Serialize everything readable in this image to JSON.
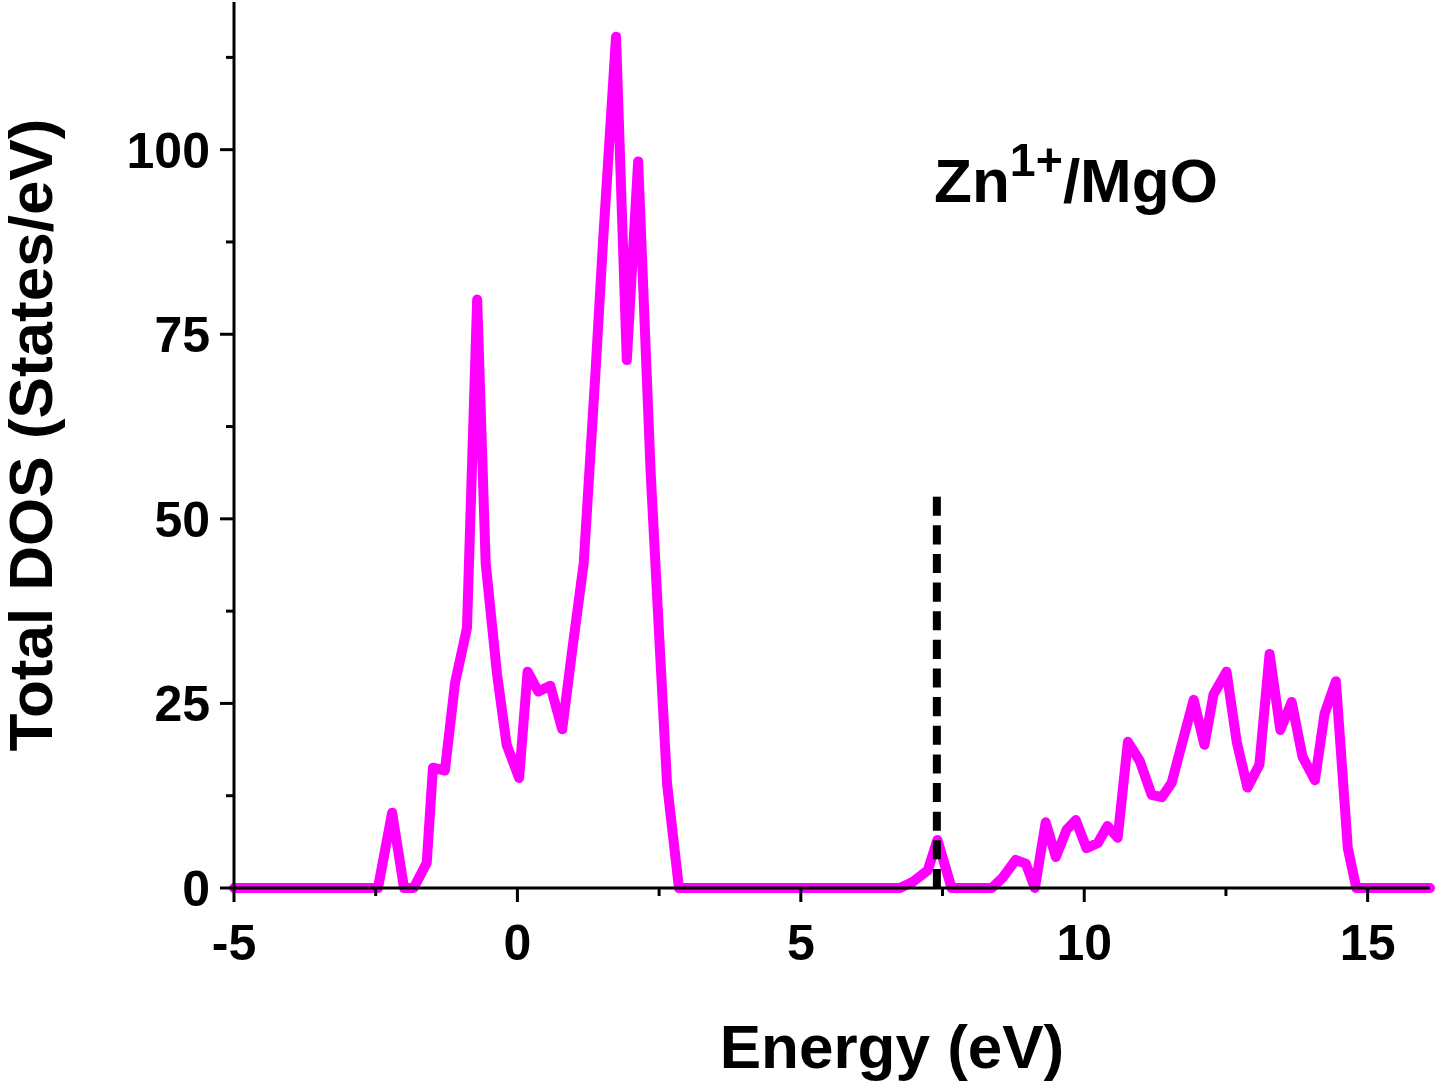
{
  "chart_data": {
    "type": "line",
    "xlabel": "Energy (eV)",
    "ylabel": "Total DOS (States/eV)",
    "annotations": [
      "Zn$^{1+}$/MgO"
    ],
    "xlim": [
      -5,
      16.1
    ],
    "xticks": [
      -5,
      {
        "value": -2.5,
        "label": null
      },
      0,
      {
        "value": 2.5,
        "label": null
      },
      5,
      {
        "value": 7.5,
        "label": null
      },
      10,
      {
        "value": 12.5,
        "label": null
      },
      15
    ],
    "ylim": [
      0,
      120
    ],
    "yticks": [
      0,
      {
        "value": 12.5,
        "label": null
      },
      25,
      {
        "value": 37.5,
        "label": null
      },
      50,
      {
        "value": 62.5,
        "label": null
      },
      75,
      {
        "value": 87.5,
        "label": null
      },
      100,
      {
        "value": 112.5,
        "label": null
      }
    ],
    "grid": false,
    "marker": "none",
    "series": [
      {
        "color": "#ff00ff",
        "line_style": "solid",
        "x": [
          -5,
          -2.46,
          -2.21,
          -2.0,
          -1.83,
          -1.6,
          -1.49,
          -1.28,
          -1.1,
          -0.89,
          -0.71,
          -0.56,
          -0.36,
          -0.19,
          0.03,
          0.18,
          0.37,
          0.58,
          0.79,
          0.96,
          1.17,
          1.38,
          1.51,
          1.74,
          1.93,
          2.13,
          2.35,
          2.5,
          2.64,
          2.85,
          6.75,
          6.97,
          7.24,
          7.41,
          7.66,
          8.37,
          8.56,
          8.79,
          8.97,
          9.13,
          9.32,
          9.5,
          9.69,
          9.85,
          10.04,
          10.24,
          10.41,
          10.59,
          10.77,
          10.98,
          11.19,
          11.37,
          11.54,
          11.93,
          12.12,
          12.28,
          12.51,
          12.69,
          12.88,
          13.09,
          13.27,
          13.46,
          13.66,
          13.85,
          14.07,
          14.24,
          14.44,
          14.65,
          14.8,
          16.1
        ],
        "values": [
          0,
          0,
          10.2,
          0,
          0,
          3.4,
          16.3,
          15.9,
          27.8,
          35.2,
          79.7,
          44,
          29,
          19.4,
          14.9,
          29.3,
          26.6,
          27.4,
          21.5,
          31.8,
          44,
          70.2,
          87.5,
          115.3,
          71.5,
          98.4,
          56.4,
          34.3,
          14.1,
          0,
          0,
          0.8,
          2.4,
          6.5,
          0,
          0,
          1.4,
          3.8,
          3.3,
          0,
          8.9,
          4.2,
          7.9,
          9.2,
          5.4,
          6.1,
          8.4,
          6.8,
          19.8,
          17.2,
          12.6,
          12.3,
          14.2,
          25.5,
          19.4,
          26.2,
          29.3,
          19.8,
          13.6,
          16.7,
          31.7,
          21.4,
          25.2,
          17.8,
          14.6,
          23.6,
          28,
          5.4,
          0,
          0
        ]
      },
      {
        "color": "#000000",
        "line_style": "dashed",
        "x": [
          7.4,
          7.4
        ],
        "values": [
          0,
          53
        ]
      }
    ]
  }
}
